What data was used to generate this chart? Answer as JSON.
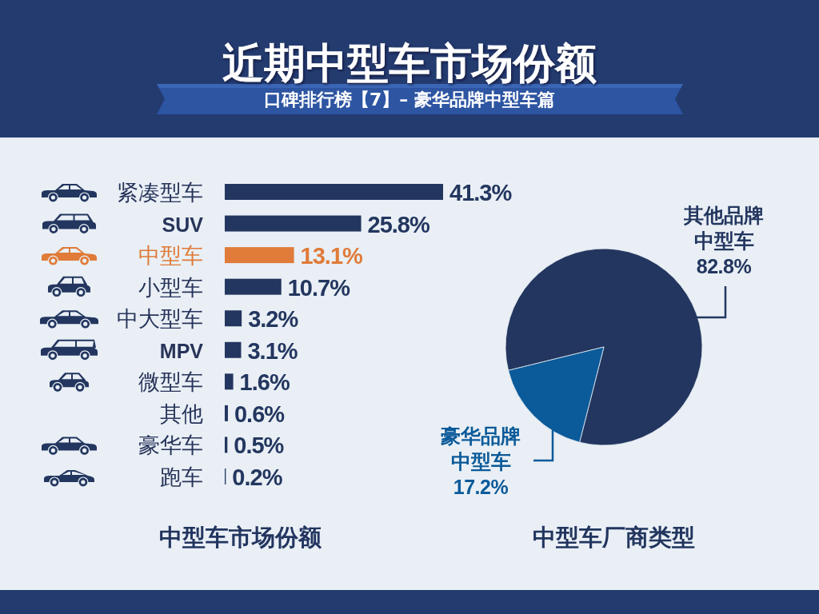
{
  "chart_data": [
    {
      "type": "other",
      "title": "近期中型车市场份额",
      "subtitle": "口碑排行榜【7】– 豪华品牌中型车篇"
    },
    {
      "type": "bar",
      "orientation": "horizontal",
      "title": "中型车市场份额",
      "categories": [
        "紧凑型车",
        "SUV",
        "中型车",
        "小型车",
        "中大型车",
        "MPV",
        "微型车",
        "其他",
        "豪华车",
        "跑车"
      ],
      "values": [
        41.3,
        25.8,
        13.1,
        10.7,
        3.2,
        3.1,
        1.6,
        0.6,
        0.5,
        0.2
      ],
      "value_labels": [
        "41.3%",
        "25.8%",
        "13.1%",
        "10.7%",
        "3.2%",
        "3.1%",
        "1.6%",
        "0.6%",
        "0.5%",
        "0.2%"
      ],
      "colors": [
        "#23365f",
        "#23365f",
        "#e07b39",
        "#23365f",
        "#23365f",
        "#23365f",
        "#23365f",
        "#23365f",
        "#23365f",
        "#23365f"
      ]
    },
    {
      "type": "pie",
      "title": "中型车厂商类型",
      "categories": [
        "其他品牌中型车",
        "豪华品牌中型车"
      ],
      "values": [
        82.8,
        17.2
      ],
      "value_labels": [
        "82.8%",
        "17.2%"
      ],
      "colors": [
        "#23365f",
        "#0b5a99"
      ]
    }
  ]
}
